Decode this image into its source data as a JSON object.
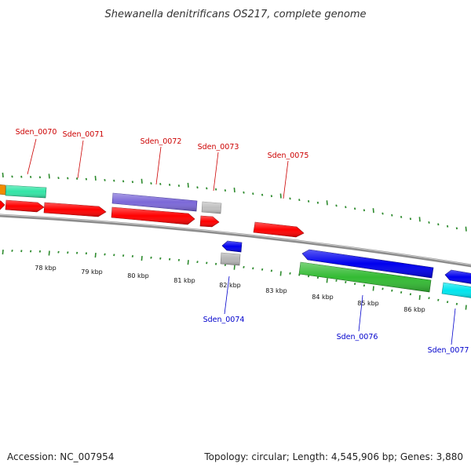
{
  "title": "Shewanella denitrificans OS217, complete genome",
  "footer": {
    "accession": "Accession: NC_007954",
    "summary": "Topology: circular; Length: 4,545,906 bp; Genes: 3,880"
  },
  "colors": {
    "backbone": "#8c8c8c",
    "tick": "#2e8b2e",
    "forward_label": "#cc0000",
    "reverse_label": "#0000cc"
  },
  "scale_labels": [
    "78 kbp",
    "79 kbp",
    "80 kbp",
    "81 kbp",
    "82 kbp",
    "83 kbp",
    "84 kbp",
    "85 kbp",
    "86 kbp"
  ],
  "gene_labels": [
    {
      "name": "Sden_0070",
      "strand": "forward"
    },
    {
      "name": "Sden_0071",
      "strand": "forward"
    },
    {
      "name": "Sden_0072",
      "strand": "forward"
    },
    {
      "name": "Sden_0073",
      "strand": "forward"
    },
    {
      "name": "Sden_0075",
      "strand": "forward"
    },
    {
      "name": "Sden_0074",
      "strand": "reverse"
    },
    {
      "name": "Sden_0076",
      "strand": "reverse"
    },
    {
      "name": "Sden_0077",
      "strand": "reverse"
    }
  ],
  "features": [
    {
      "type": "CDS",
      "strand": "forward",
      "color": "#ff0000"
    },
    {
      "type": "CDS",
      "strand": "forward",
      "color": "#ff0000"
    },
    {
      "type": "CDS",
      "strand": "forward",
      "color": "#ff0000"
    },
    {
      "type": "CDS",
      "strand": "forward",
      "color": "#ff0000"
    },
    {
      "type": "CDS",
      "strand": "forward",
      "color": "#ff0000"
    },
    {
      "type": "CDS",
      "strand": "forward",
      "color": "#ff0000"
    },
    {
      "type": "gene",
      "strand": "forward",
      "color": "#f28c00"
    },
    {
      "type": "gene",
      "strand": "forward",
      "color": "#33e5a6"
    },
    {
      "type": "gene",
      "strand": "forward",
      "color": "#7b68d8"
    },
    {
      "type": "gene",
      "strand": "forward",
      "color": "#c0c0c0"
    },
    {
      "type": "CDS",
      "strand": "reverse",
      "color": "#0000ee"
    },
    {
      "type": "CDS",
      "strand": "reverse",
      "color": "#0000ee"
    },
    {
      "type": "CDS",
      "strand": "reverse",
      "color": "#0000ee"
    },
    {
      "type": "gene",
      "strand": "reverse",
      "color": "#b4b4b4"
    },
    {
      "type": "gene",
      "strand": "reverse",
      "color": "#33bb33"
    },
    {
      "type": "gene",
      "strand": "reverse",
      "color": "#00e5ee"
    }
  ]
}
